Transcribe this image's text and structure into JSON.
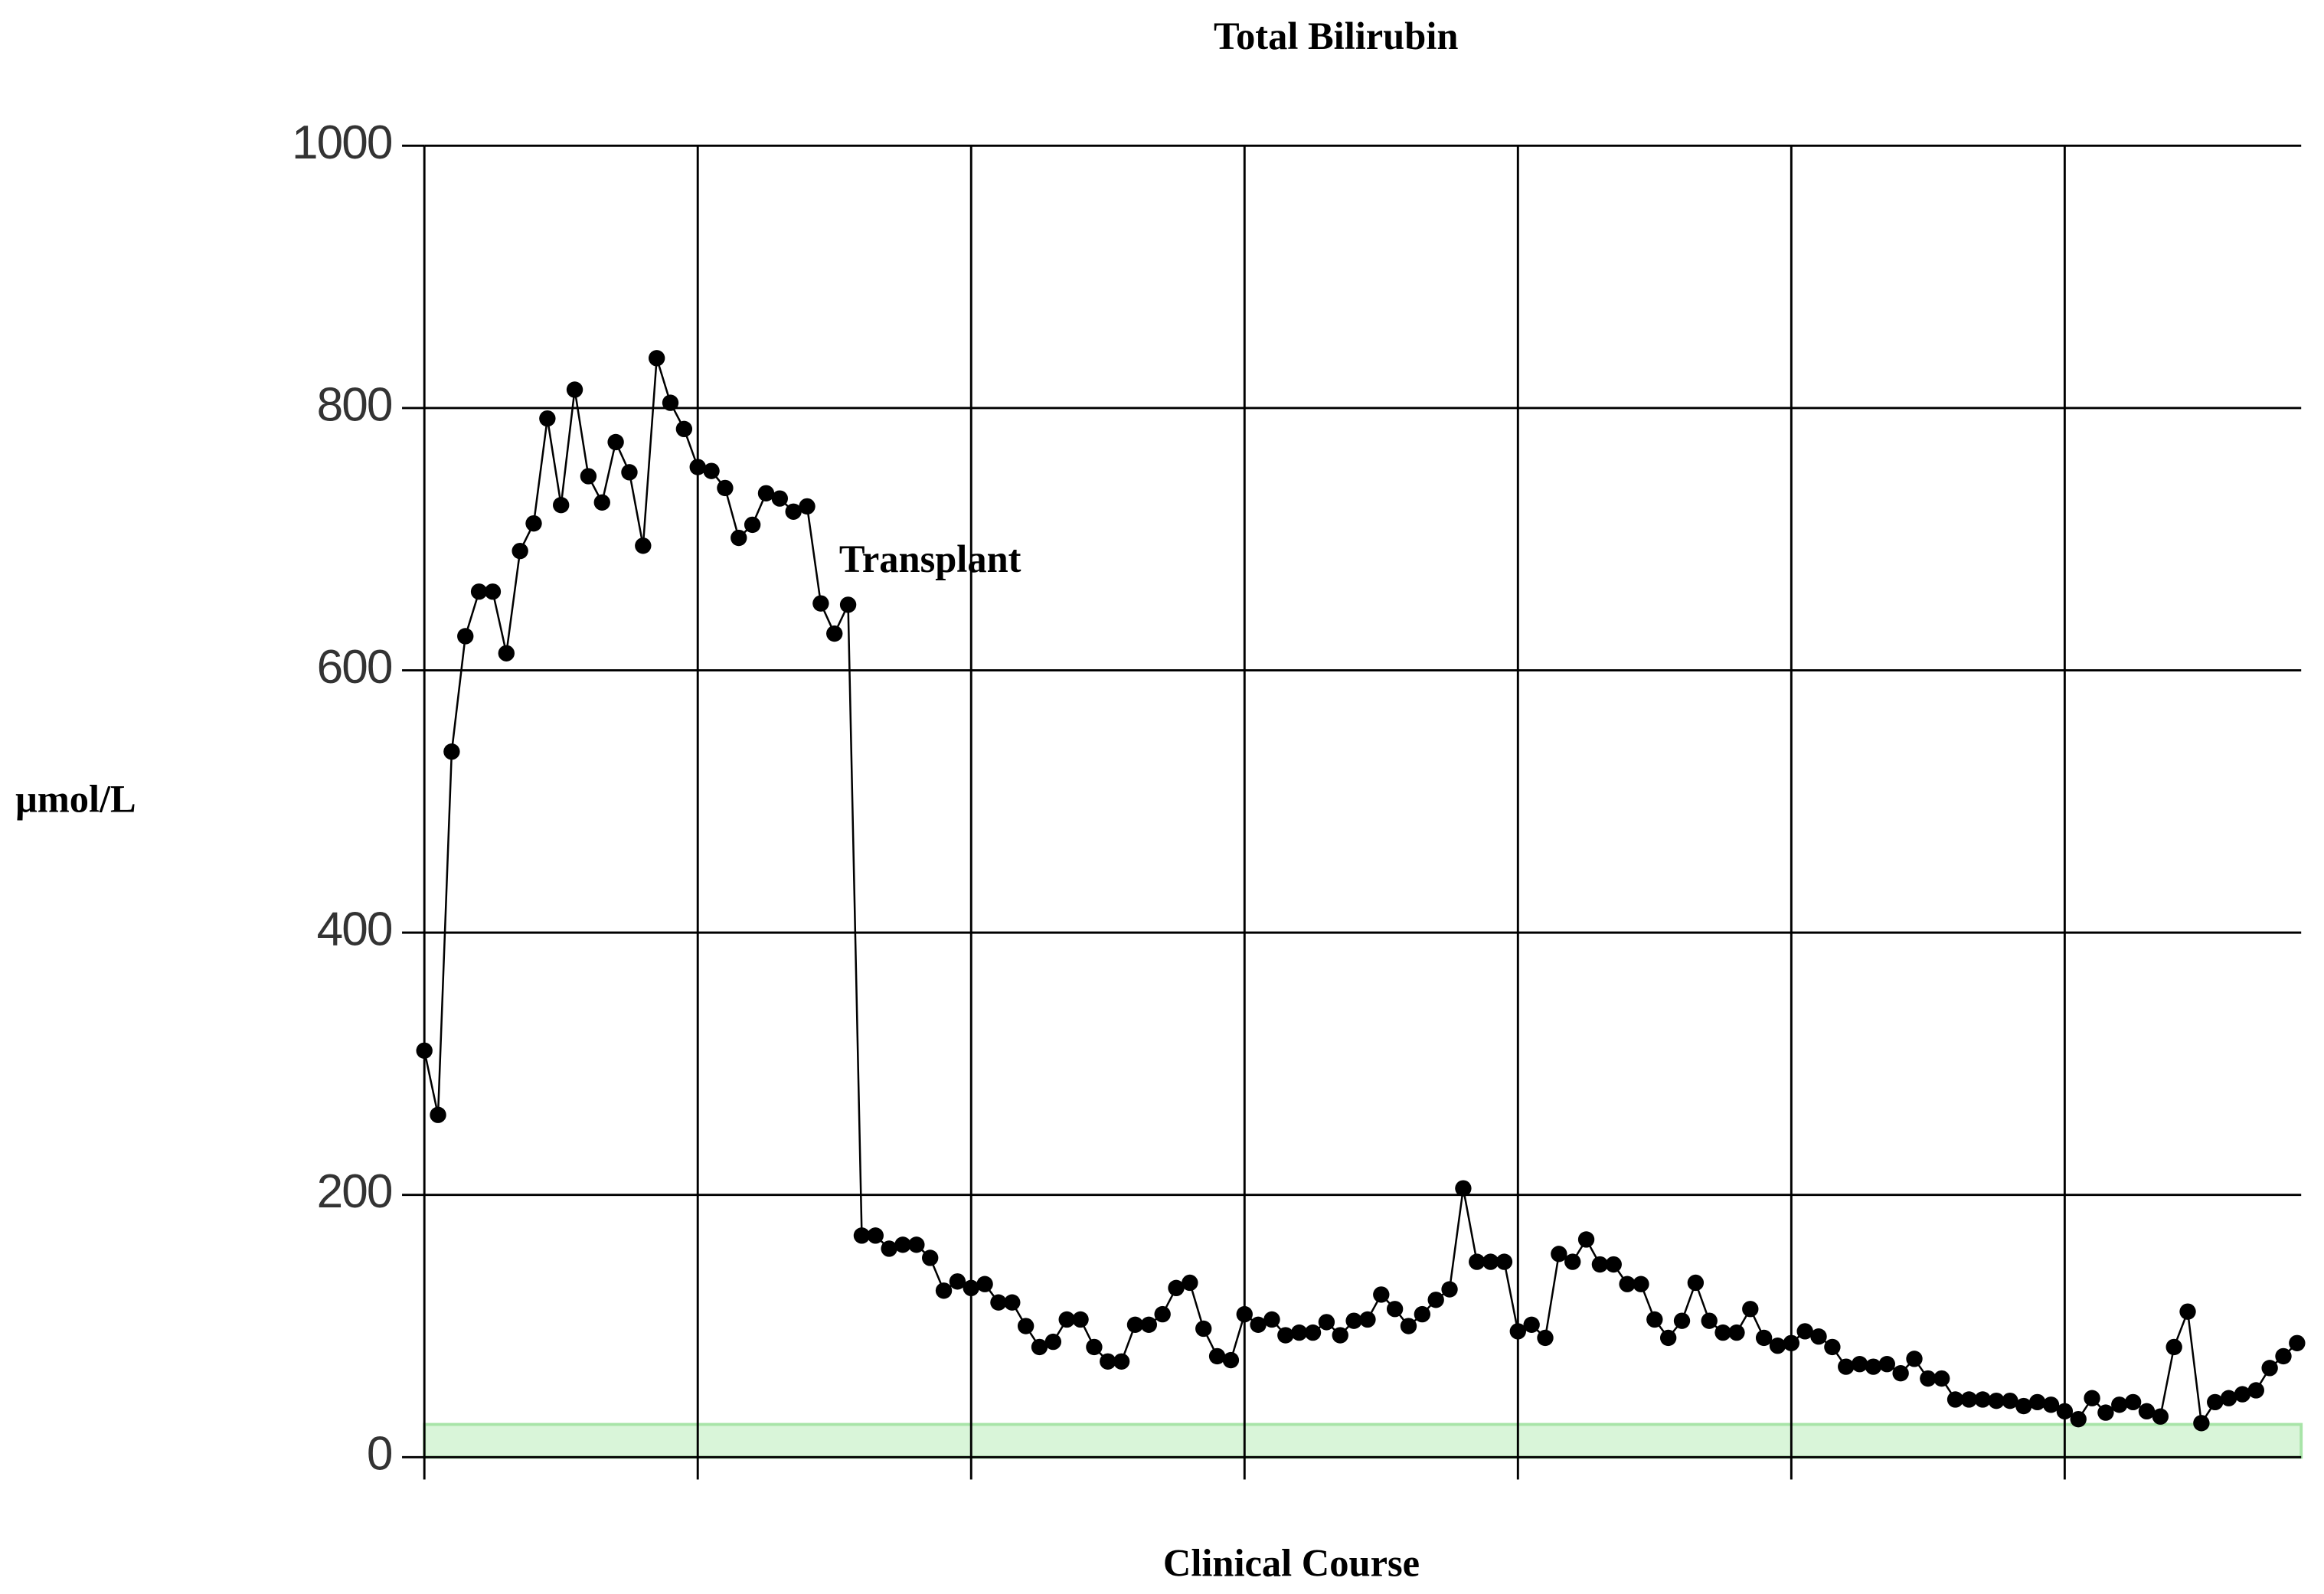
{
  "chart_data": {
    "type": "line",
    "title": "Total Bilirubin",
    "x_label": "Clinical Course",
    "y_label": "μmol/L",
    "x": [
      0,
      1,
      2,
      3,
      4,
      5,
      6,
      7,
      8,
      9,
      10,
      11,
      12,
      13,
      14,
      15,
      16,
      17,
      18,
      19,
      20,
      21,
      22,
      23,
      24,
      25,
      26,
      27,
      28,
      29,
      30,
      31,
      32,
      33,
      34,
      35,
      36,
      37,
      38,
      39,
      40,
      41,
      42,
      43,
      44,
      45,
      46,
      47,
      48,
      49,
      50,
      51,
      52,
      53,
      54,
      55,
      56,
      57,
      58,
      59,
      60,
      61,
      62,
      63,
      64,
      65,
      66,
      67,
      68,
      69,
      70,
      71,
      72,
      73,
      74,
      75,
      76,
      77,
      78,
      79,
      80,
      81,
      82,
      83,
      84,
      85,
      86,
      87,
      88,
      89,
      90,
      91,
      92,
      93,
      94,
      95,
      96,
      97,
      98,
      99,
      100,
      101,
      102,
      103,
      104,
      105,
      106,
      107,
      108,
      109,
      110,
      111,
      112,
      113,
      114,
      115,
      116,
      117,
      118,
      119,
      120,
      121,
      122,
      123,
      124,
      125,
      126,
      127,
      128,
      129,
      130,
      131,
      132,
      133,
      134,
      135,
      136,
      137
    ],
    "series": [
      {
        "name": "Total Bilirubin",
        "color": "#000000",
        "values": [
          310,
          261,
          538,
          626,
          660,
          660,
          613,
          691,
          712,
          792,
          726,
          814,
          748,
          728,
          774,
          751,
          695,
          838,
          804,
          784,
          755,
          752,
          739,
          701,
          711,
          735,
          731,
          721,
          725,
          651,
          628,
          650,
          169,
          169,
          159,
          162,
          162,
          152,
          127,
          134,
          129,
          132,
          118,
          118,
          100,
          84,
          88,
          105,
          105,
          84,
          73,
          73,
          101,
          101,
          109,
          129,
          133,
          98,
          77,
          74,
          109,
          101,
          105,
          93,
          95,
          95,
          103,
          93,
          104,
          105,
          124,
          113,
          100,
          109,
          120,
          128,
          205,
          149,
          149,
          149,
          96,
          101,
          91,
          155,
          149,
          166,
          147,
          147,
          132,
          132,
          105,
          91,
          104,
          133,
          104,
          95,
          95,
          113,
          91,
          85,
          87,
          96,
          92,
          84,
          69,
          71,
          69,
          71,
          64,
          75,
          60,
          60,
          44,
          44,
          44,
          43,
          43,
          39,
          42,
          40,
          35,
          29,
          45,
          34,
          40,
          42,
          35,
          31,
          84,
          111,
          26,
          42,
          45,
          48,
          51,
          68,
          77,
          87
        ]
      }
    ],
    "xlim": [
      0,
      137.3
    ],
    "xticks": [
      0,
      20,
      40,
      60,
      80,
      100,
      120
    ],
    "xtick_labels": false,
    "ylim": [
      0,
      1000
    ],
    "yticks": [
      0,
      200,
      400,
      600,
      800,
      1000
    ],
    "grid": true,
    "normal_range": {
      "range": [
        0,
        25
      ],
      "color": "#d9f5d9",
      "edge_color": "#a8e4a8"
    },
    "annotation": {
      "text": "Transplant",
      "x": 31
    }
  }
}
